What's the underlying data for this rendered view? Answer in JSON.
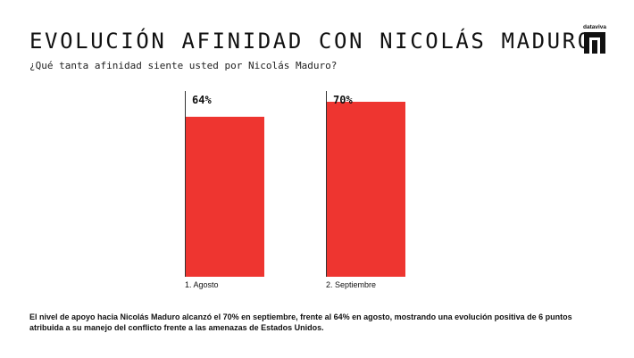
{
  "header": {
    "title": "EVOLUCIÓN AFINIDAD CON NICOLÁS MADURO",
    "subtitle": "¿Qué tanta afinidad siente usted por Nicolás Maduro?",
    "logo_text": "dataviva"
  },
  "colors": {
    "bar": "#EE3530",
    "axis": "#333333",
    "text": "#111111"
  },
  "chart_data": {
    "type": "bar",
    "categories": [
      "1. Agosto",
      "2. Septiembre"
    ],
    "values": [
      64,
      70
    ],
    "value_labels": [
      "64%",
      "70%"
    ],
    "title": "",
    "xlabel": "",
    "ylabel": "",
    "ylim": [
      0,
      100
    ],
    "grid": false,
    "legend": "none"
  },
  "footnote": "El nivel de apoyo hacia Nicolás Maduro alcanzó el 70% en septiembre, frente al 64% en agosto, mostrando una evolución positiva de 6 puntos atribuida a su manejo del conflicto frente a las amenazas de Estados Unidos."
}
